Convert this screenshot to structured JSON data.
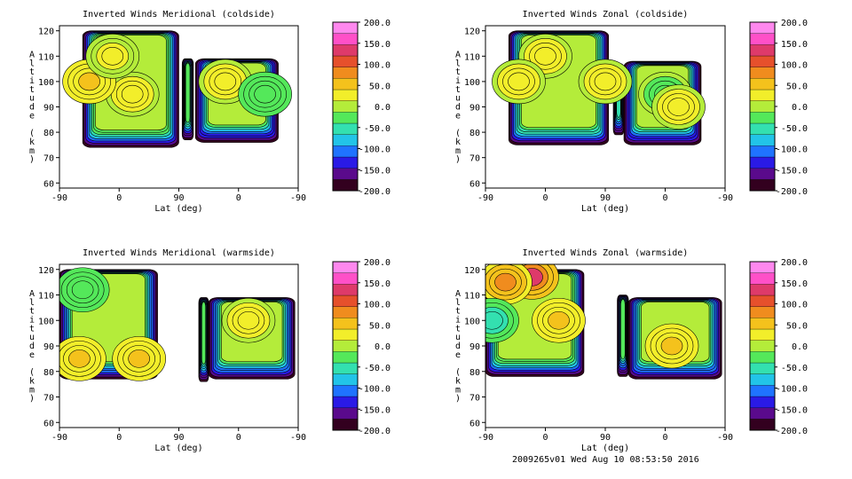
{
  "footer": "2009265v01 Wed Aug 10 08:53:50 2016",
  "colorbar": {
    "ticks": [
      "200.0",
      "150.0",
      "100.0",
      "50.0",
      "0.0",
      "-50.0",
      "-100.0",
      "-150.0",
      "-200.0"
    ],
    "range": [
      -200,
      200
    ],
    "colors": [
      "#33001f",
      "#5a0a8c",
      "#2a1ae6",
      "#1f73ff",
      "#22c4e8",
      "#33e0b0",
      "#54e85a",
      "#b4ec3a",
      "#f2ee2a",
      "#f4c21c",
      "#f08c1e",
      "#e6502c",
      "#de3a6a",
      "#ff50c8",
      "#ff88ee"
    ]
  },
  "chart_data": [
    {
      "type": "heatmap",
      "title": "Inverted Winds Meridional (coldside)",
      "xlabel": "Lat (deg)",
      "ylabel": "Altitude (km)",
      "xticks": [
        "-90",
        "0",
        "90",
        "0",
        "-90"
      ],
      "yticks": [
        "60",
        "70",
        "80",
        "90",
        "100",
        "110",
        "120"
      ],
      "ylim": [
        58,
        122
      ],
      "x_description": "latitude across dayside then nightside, -90 to 90 to -90",
      "colorbar_range": [
        -200,
        200
      ],
      "colorbar_ticks": [
        "200.0",
        "150.0",
        "100.0",
        "50.0",
        "0.0",
        "-50.0",
        "-100.0",
        "-150.0",
        "-200.0"
      ],
      "blocks": [
        {
          "x": [
            -55,
            90
          ],
          "y": [
            74,
            120
          ],
          "interior": 10
        },
        {
          "x": [
            95,
            112
          ],
          "y": [
            77,
            109
          ],
          "interior": -25
        },
        {
          "x": [
            115,
            240
          ],
          "y": [
            76,
            109
          ],
          "interior": -5
        }
      ],
      "features": [
        {
          "x": 20,
          "y": 95,
          "value": 35
        },
        {
          "x": -45,
          "y": 100,
          "value": 40
        },
        {
          "x": -10,
          "y": 110,
          "value": 25
        },
        {
          "x": 160,
          "y": 100,
          "value": 35
        },
        {
          "x": 220,
          "y": 95,
          "value": -40
        }
      ]
    },
    {
      "type": "heatmap",
      "title": "Inverted Winds Zonal (coldside)",
      "xlabel": "Lat (deg)",
      "ylabel": "Altitude (km)",
      "xticks": [
        "-90",
        "0",
        "90",
        "0",
        "-90"
      ],
      "yticks": [
        "60",
        "70",
        "80",
        "90",
        "100",
        "110",
        "120"
      ],
      "ylim": [
        58,
        122
      ],
      "x_description": "latitude across dayside then nightside, -90 to 90 to -90",
      "colorbar_range": [
        -200,
        200
      ],
      "colorbar_ticks": [
        "200.0",
        "150.0",
        "100.0",
        "50.0",
        "0.0",
        "-50.0",
        "-100.0",
        "-150.0",
        "-200.0"
      ],
      "blocks": [
        {
          "x": [
            -55,
            95
          ],
          "y": [
            75,
            120
          ],
          "interior": 8
        },
        {
          "x": [
            102,
            118
          ],
          "y": [
            79,
            107
          ],
          "interior": -45
        },
        {
          "x": [
            118,
            234
          ],
          "y": [
            75,
            108
          ],
          "interior": -5
        }
      ],
      "features": [
        {
          "x": 0,
          "y": 110,
          "value": 30
        },
        {
          "x": -40,
          "y": 100,
          "value": 30
        },
        {
          "x": 90,
          "y": 100,
          "value": 30
        },
        {
          "x": 180,
          "y": 95,
          "value": -35
        },
        {
          "x": 200,
          "y": 90,
          "value": 30
        }
      ]
    },
    {
      "type": "heatmap",
      "title": "Inverted Winds Meridional (warmside)",
      "xlabel": "Lat (deg)",
      "ylabel": "Altitude (km)",
      "xticks": [
        "-90",
        "0",
        "90",
        "0",
        "-90"
      ],
      "yticks": [
        "60",
        "70",
        "80",
        "90",
        "100",
        "110",
        "120"
      ],
      "ylim": [
        58,
        122
      ],
      "x_description": "latitude across dayside then nightside, -90 to 90 to -90",
      "colorbar_range": [
        -200,
        200
      ],
      "colorbar_ticks": [
        "200.0",
        "150.0",
        "100.0",
        "50.0",
        "0.0",
        "-50.0",
        "-100.0",
        "-150.0",
        "-200.0"
      ],
      "blocks": [
        {
          "x": [
            -90,
            58
          ],
          "y": [
            77,
            120
          ],
          "interior": 0
        },
        {
          "x": [
            120,
            135
          ],
          "y": [
            76,
            109
          ],
          "interior": -30
        },
        {
          "x": [
            135,
            265
          ],
          "y": [
            77,
            109
          ],
          "interior": 0
        }
      ],
      "features": [
        {
          "x": -60,
          "y": 85,
          "value": 45
        },
        {
          "x": 30,
          "y": 85,
          "value": 40
        },
        {
          "x": -55,
          "y": 112,
          "value": -40
        },
        {
          "x": 195,
          "y": 100,
          "value": 35
        }
      ]
    },
    {
      "type": "heatmap",
      "title": "Inverted Winds Zonal (warmside)",
      "xlabel": "Lat (deg)",
      "ylabel": "Altitude (km)",
      "xticks": [
        "-90",
        "0",
        "90",
        "0",
        "-90"
      ],
      "yticks": [
        "60",
        "70",
        "80",
        "90",
        "100",
        "110",
        "120"
      ],
      "ylim": [
        58,
        122
      ],
      "x_description": "latitude across dayside then nightside, -90 to 90 to -90",
      "colorbar_range": [
        -200,
        200
      ],
      "colorbar_ticks": [
        "200.0",
        "150.0",
        "100.0",
        "50.0",
        "0.0",
        "-50.0",
        "-100.0",
        "-150.0",
        "-200.0"
      ],
      "blocks": [
        {
          "x": [
            -90,
            58
          ],
          "y": [
            78,
            120
          ],
          "interior": 10
        },
        {
          "x": [
            108,
            125
          ],
          "y": [
            78,
            110
          ],
          "interior": -40
        },
        {
          "x": [
            125,
            265
          ],
          "y": [
            77,
            109
          ],
          "interior": 0
        }
      ],
      "features": [
        {
          "x": -20,
          "y": 117,
          "value": 120
        },
        {
          "x": -60,
          "y": 115,
          "value": 80
        },
        {
          "x": -80,
          "y": 100,
          "value": -60
        },
        {
          "x": 20,
          "y": 100,
          "value": 40
        },
        {
          "x": 190,
          "y": 90,
          "value": 40
        }
      ]
    }
  ]
}
